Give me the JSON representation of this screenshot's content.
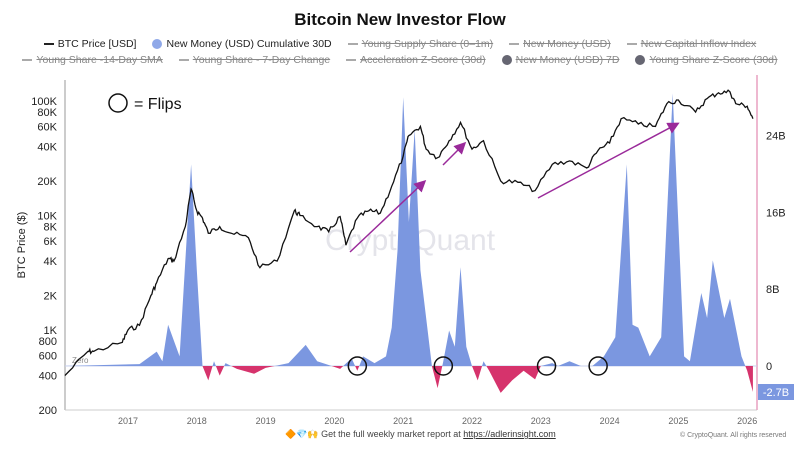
{
  "chart_data": {
    "type": "line+area",
    "title": "Bitcoin New Investor Flow",
    "ylabel": "BTC Price ($)",
    "y_left": {
      "scale": "log",
      "range": [
        200,
        150000
      ],
      "ticks": [
        200,
        400,
        600,
        800,
        "1K",
        "2K",
        "4K",
        "6K",
        "8K",
        "10K",
        "20K",
        "40K",
        "60K",
        "80K",
        "100K"
      ]
    },
    "y_right": {
      "scale": "linear",
      "range": [
        -4.5,
        30
      ],
      "unit": "B",
      "ticks": [
        "0",
        "8B",
        "16B",
        "24B"
      ],
      "last_value_label": "-2.7B"
    },
    "x_ticks": [
      "2017",
      "2018",
      "2019",
      "2020",
      "2021",
      "2022",
      "2023",
      "2024",
      "2025",
      "2026"
    ],
    "zero_label": "Zero",
    "annotation": "= Flips",
    "watermark": "CryptoQuant",
    "colors": {
      "price": "#111111",
      "positive": "#7b97e0",
      "negative": "#d6336c",
      "arrow": "#9a2a9a",
      "right_axis": "#e8a0c0"
    },
    "legend": [
      {
        "label": "BTC Price [USD]",
        "marker": "line",
        "enabled": true,
        "color": "#222222"
      },
      {
        "label": "New Money (USD) Cumulative 30D",
        "marker": "dot",
        "enabled": true,
        "color": "#8fa8e8"
      },
      {
        "label": "Young Supply Share (0–1m)",
        "marker": "line",
        "enabled": false
      },
      {
        "label": "New Money (USD)",
        "marker": "line",
        "enabled": false
      },
      {
        "label": "New Capital Inflow Index",
        "marker": "line",
        "enabled": false
      },
      {
        "label": "Young Share -14-Day SMA",
        "marker": "line",
        "enabled": false
      },
      {
        "label": "Young Share - 7-Day Change",
        "marker": "line",
        "enabled": false
      },
      {
        "label": "Acceleration Z-Score (30d)",
        "marker": "line",
        "enabled": false
      },
      {
        "label": "New Money (USD) 7D",
        "marker": "dot",
        "enabled": false,
        "color": "#666672"
      },
      {
        "label": "Young Share Z-Score (30d)",
        "marker": "dot",
        "enabled": false,
        "color": "#666672"
      }
    ],
    "series": [
      {
        "name": "BTC Price [USD]",
        "axis": "left",
        "points": [
          [
            "2016-02",
            400
          ],
          [
            "2016-06",
            650
          ],
          [
            "2016-07",
            650
          ],
          [
            "2016-12",
            780
          ],
          [
            "2017-01",
            1000
          ],
          [
            "2017-03",
            1100
          ],
          [
            "2017-05",
            2000
          ],
          [
            "2017-06",
            2600
          ],
          [
            "2017-08",
            4200
          ],
          [
            "2017-09",
            4000
          ],
          [
            "2017-11",
            8000
          ],
          [
            "2017-12",
            17000
          ],
          [
            "2018-01",
            11000
          ],
          [
            "2018-02",
            9500
          ],
          [
            "2018-03",
            7000
          ],
          [
            "2018-05",
            8000
          ],
          [
            "2018-07",
            7000
          ],
          [
            "2018-10",
            6400
          ],
          [
            "2018-12",
            3500
          ],
          [
            "2019-03",
            4000
          ],
          [
            "2019-06",
            11000
          ],
          [
            "2019-07",
            10000
          ],
          [
            "2019-10",
            8000
          ],
          [
            "2019-12",
            7200
          ],
          [
            "2020-02",
            9800
          ],
          [
            "2020-03",
            5500
          ],
          [
            "2020-05",
            9500
          ],
          [
            "2020-07",
            11000
          ],
          [
            "2020-09",
            10500
          ],
          [
            "2020-11",
            18000
          ],
          [
            "2021-01",
            33000
          ],
          [
            "2021-02",
            50000
          ],
          [
            "2021-04",
            60000
          ],
          [
            "2021-05",
            38000
          ],
          [
            "2021-07",
            32000
          ],
          [
            "2021-09",
            45000
          ],
          [
            "2021-11",
            65000
          ],
          [
            "2022-01",
            38000
          ],
          [
            "2022-03",
            45000
          ],
          [
            "2022-06",
            20000
          ],
          [
            "2022-09",
            19500
          ],
          [
            "2022-12",
            16500
          ],
          [
            "2023-03",
            28000
          ],
          [
            "2023-06",
            30000
          ],
          [
            "2023-09",
            26000
          ],
          [
            "2023-11",
            37000
          ],
          [
            "2024-01",
            43000
          ],
          [
            "2024-03",
            70000
          ],
          [
            "2024-06",
            63000
          ],
          [
            "2024-09",
            60000
          ],
          [
            "2024-11",
            95000
          ],
          [
            "2025-01",
            102000
          ],
          [
            "2025-04",
            80000
          ],
          [
            "2025-06",
            105000
          ],
          [
            "2025-08",
            118000
          ],
          [
            "2025-10",
            120000
          ],
          [
            "2025-11",
            95000
          ],
          [
            "2026-01",
            90000
          ],
          [
            "2026-02",
            70000
          ]
        ]
      },
      {
        "name": "New Money (USD) Cumulative 30D",
        "axis": "right",
        "unit": "B",
        "points": [
          [
            "2016-02",
            0
          ],
          [
            "2017-03",
            0.2
          ],
          [
            "2017-06",
            1.5
          ],
          [
            "2017-07",
            0.5
          ],
          [
            "2017-08",
            4.3
          ],
          [
            "2017-10",
            1
          ],
          [
            "2017-12",
            21
          ],
          [
            "2018-01",
            10
          ],
          [
            "2018-02",
            0
          ],
          [
            "2018-03",
            -1.5
          ],
          [
            "2018-04",
            0.5
          ],
          [
            "2018-05",
            -1
          ],
          [
            "2018-06",
            0.3
          ],
          [
            "2018-08",
            -0.3
          ],
          [
            "2018-11",
            -0.8
          ],
          [
            "2019-01",
            -0.2
          ],
          [
            "2019-05",
            0.3
          ],
          [
            "2019-08",
            2.2
          ],
          [
            "2019-10",
            0.5
          ],
          [
            "2019-12",
            0.1
          ],
          [
            "2020-02",
            -0.3
          ],
          [
            "2020-04",
            0.8
          ],
          [
            "2020-05",
            -0.5
          ],
          [
            "2020-06",
            1
          ],
          [
            "2020-08",
            0.3
          ],
          [
            "2020-10",
            1
          ],
          [
            "2020-11",
            4
          ],
          [
            "2020-12",
            12
          ],
          [
            "2021-01",
            28
          ],
          [
            "2021-02",
            15
          ],
          [
            "2021-03",
            24.6
          ],
          [
            "2021-04",
            10
          ],
          [
            "2021-06",
            0
          ],
          [
            "2021-07",
            -2.3
          ],
          [
            "2021-08",
            0.5
          ],
          [
            "2021-09",
            3.7
          ],
          [
            "2021-10",
            2
          ],
          [
            "2021-11",
            10.3
          ],
          [
            "2021-12",
            2
          ],
          [
            "2022-01",
            0
          ],
          [
            "2022-02",
            -1.5
          ],
          [
            "2022-03",
            0.5
          ],
          [
            "2022-04",
            -0.5
          ],
          [
            "2022-06",
            -2.8
          ],
          [
            "2022-08",
            -1.5
          ],
          [
            "2022-10",
            -0.5
          ],
          [
            "2022-12",
            -1.4
          ],
          [
            "2023-01",
            0
          ],
          [
            "2023-03",
            0.3
          ],
          [
            "2023-04",
            0
          ],
          [
            "2023-06",
            0.5
          ],
          [
            "2023-08",
            0
          ],
          [
            "2023-10",
            0
          ],
          [
            "2023-12",
            1
          ],
          [
            "2024-02",
            3
          ],
          [
            "2024-04",
            21
          ],
          [
            "2024-05",
            4.3
          ],
          [
            "2024-06",
            4
          ],
          [
            "2024-08",
            1
          ],
          [
            "2024-10",
            3
          ],
          [
            "2024-12",
            28.4
          ],
          [
            "2025-02",
            1
          ],
          [
            "2025-03",
            0.5
          ],
          [
            "2025-05",
            7.6
          ],
          [
            "2025-06",
            5
          ],
          [
            "2025-07",
            11
          ],
          [
            "2025-09",
            5
          ],
          [
            "2025-10",
            7
          ],
          [
            "2025-12",
            1
          ],
          [
            "2026-01",
            -0.5
          ],
          [
            "2026-02",
            -2.7
          ]
        ]
      }
    ],
    "flips": [
      "2020-05",
      "2021-08",
      "2023-02",
      "2023-11"
    ]
  },
  "footer": {
    "icons": "🔶💎🙌",
    "text": "Get the full weekly market report at ",
    "link": "https://adlerinsight.com",
    "copyright": "© CryptoQuant. All rights reserved"
  }
}
